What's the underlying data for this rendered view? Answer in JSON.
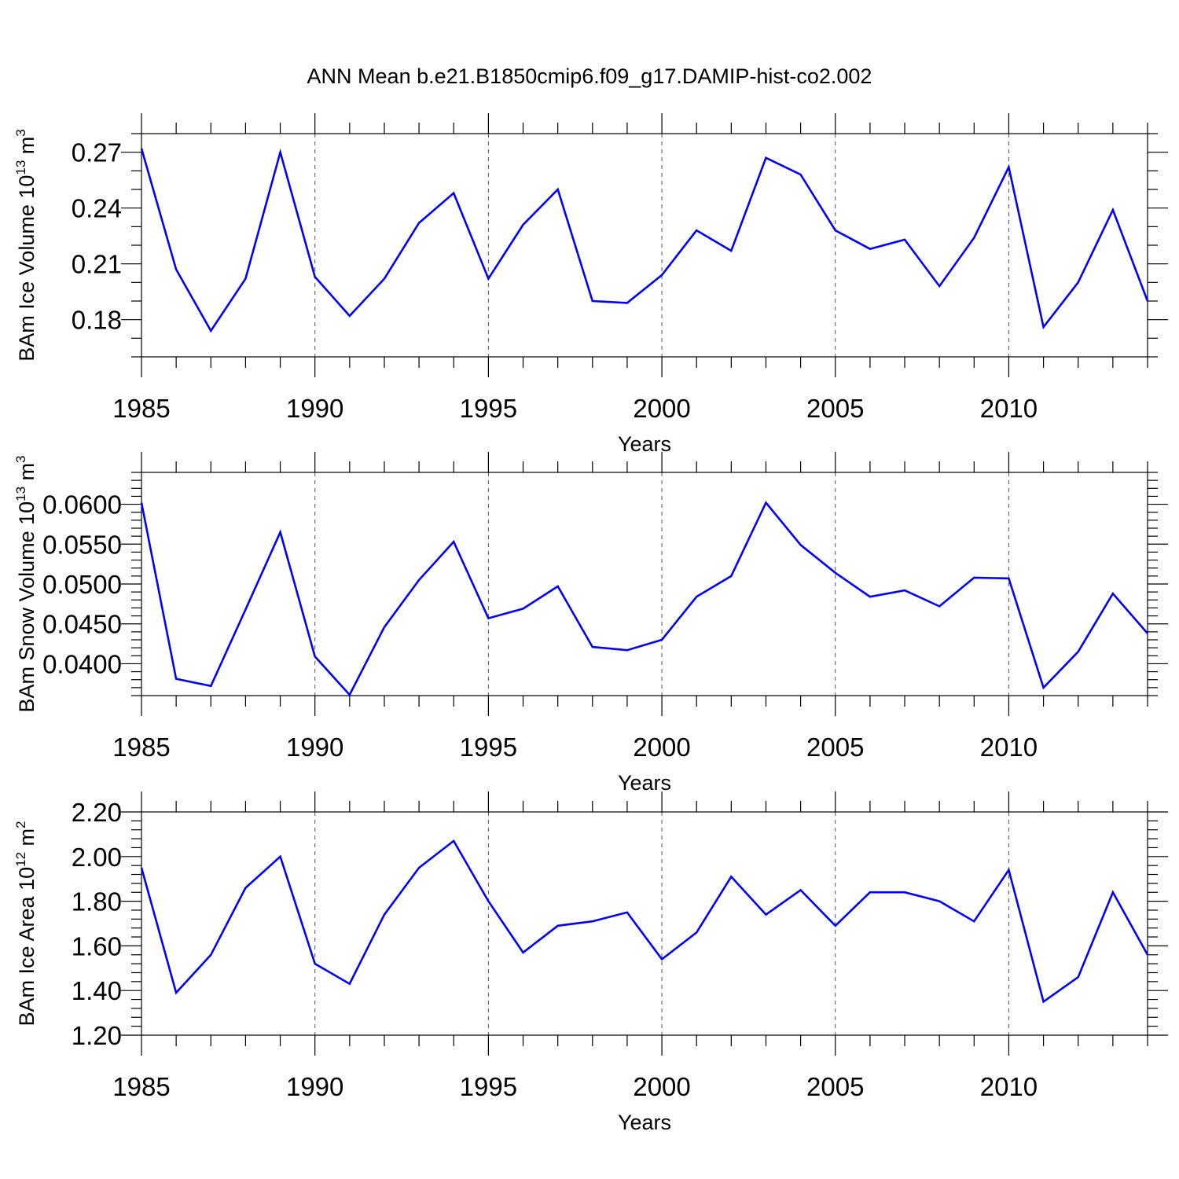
{
  "title": "ANN Mean b.e21.B1850cmip6.f09_g17.DAMIP-hist-co2.002",
  "colors": {
    "line": "#0000ff",
    "axis": "#000000",
    "grid": "#555555"
  },
  "chart_data": [
    {
      "type": "line",
      "ylabel_main": "BAm Ice Volume 10",
      "ylabel_exp": "13",
      "ylabel_unit": " m",
      "ylabel_unit_exp": "3",
      "xlabel": "Years",
      "xlim": [
        1985,
        2014
      ],
      "ylim": [
        0.16,
        0.28
      ],
      "ytick_values": [
        0.18,
        0.21,
        0.24,
        0.27
      ],
      "ytick_labels": [
        "0.18",
        "0.21",
        "0.24",
        "0.27"
      ],
      "yminor_step": 0.01,
      "xtick_values": [
        1985,
        1990,
        1995,
        2000,
        2005,
        2010
      ],
      "xtick_labels": [
        "1985",
        "1990",
        "1995",
        "2000",
        "2005",
        "2010"
      ],
      "x": [
        1985,
        1986,
        1987,
        1988,
        1989,
        1990,
        1991,
        1992,
        1993,
        1994,
        1995,
        1996,
        1997,
        1998,
        1999,
        2000,
        2001,
        2002,
        2003,
        2004,
        2005,
        2006,
        2007,
        2008,
        2009,
        2010,
        2011,
        2012,
        2013,
        2014
      ],
      "values": [
        0.272,
        0.207,
        0.174,
        0.202,
        0.27,
        0.203,
        0.182,
        0.202,
        0.232,
        0.248,
        0.202,
        0.231,
        0.25,
        0.19,
        0.189,
        0.204,
        0.228,
        0.217,
        0.267,
        0.258,
        0.228,
        0.218,
        0.223,
        0.198,
        0.224,
        0.262,
        0.176,
        0.2,
        0.239,
        0.19
      ]
    },
    {
      "type": "line",
      "ylabel_main": "BAm Snow Volume 10",
      "ylabel_exp": "13",
      "ylabel_unit": " m",
      "ylabel_unit_exp": "3",
      "xlabel": "Years",
      "xlim": [
        1985,
        2014
      ],
      "ylim": [
        0.036,
        0.064
      ],
      "ytick_values": [
        0.04,
        0.045,
        0.05,
        0.055,
        0.06
      ],
      "ytick_labels": [
        "0.0400",
        "0.0450",
        "0.0500",
        "0.0550",
        "0.0600"
      ],
      "yminor_step": 0.001,
      "xtick_values": [
        1985,
        1990,
        1995,
        2000,
        2005,
        2010
      ],
      "xtick_labels": [
        "1985",
        "1990",
        "1995",
        "2000",
        "2005",
        "2010"
      ],
      "x": [
        1985,
        1986,
        1987,
        1988,
        1989,
        1990,
        1991,
        1992,
        1993,
        1994,
        1995,
        1996,
        1997,
        1998,
        1999,
        2000,
        2001,
        2002,
        2003,
        2004,
        2005,
        2006,
        2007,
        2008,
        2009,
        2010,
        2011,
        2012,
        2013,
        2014
      ],
      "values": [
        0.0602,
        0.0381,
        0.0372,
        0.0468,
        0.0565,
        0.0409,
        0.0361,
        0.0446,
        0.0505,
        0.0553,
        0.0457,
        0.0469,
        0.0497,
        0.0421,
        0.0417,
        0.043,
        0.0484,
        0.051,
        0.0602,
        0.0549,
        0.0514,
        0.0484,
        0.0492,
        0.0472,
        0.0508,
        0.0507,
        0.037,
        0.0415,
        0.0488,
        0.0438
      ]
    },
    {
      "type": "line",
      "ylabel_main": "BAm Ice Area 10",
      "ylabel_exp": "12",
      "ylabel_unit": " m",
      "ylabel_unit_exp": "2",
      "xlabel": "Years",
      "xlim": [
        1985,
        2014
      ],
      "ylim": [
        1.2,
        2.2
      ],
      "ytick_values": [
        1.2,
        1.4,
        1.6,
        1.8,
        2.0,
        2.2
      ],
      "ytick_labels": [
        "1.20",
        "1.40",
        "1.60",
        "1.80",
        "2.00",
        "2.20"
      ],
      "yminor_step": 0.04,
      "xtick_values": [
        1985,
        1990,
        1995,
        2000,
        2005,
        2010
      ],
      "xtick_labels": [
        "1985",
        "1990",
        "1995",
        "2000",
        "2005",
        "2010"
      ],
      "x": [
        1985,
        1986,
        1987,
        1988,
        1989,
        1990,
        1991,
        1992,
        1993,
        1994,
        1995,
        1996,
        1997,
        1998,
        1999,
        2000,
        2001,
        2002,
        2003,
        2004,
        2005,
        2006,
        2007,
        2008,
        2009,
        2010,
        2011,
        2012,
        2013,
        2014
      ],
      "values": [
        1.95,
        1.39,
        1.56,
        1.86,
        2.0,
        1.52,
        1.43,
        1.74,
        1.95,
        2.07,
        1.8,
        1.57,
        1.69,
        1.71,
        1.75,
        1.54,
        1.66,
        1.91,
        1.74,
        1.85,
        1.69,
        1.84,
        1.84,
        1.8,
        1.71,
        1.94,
        1.35,
        1.46,
        1.84,
        1.56
      ]
    }
  ]
}
